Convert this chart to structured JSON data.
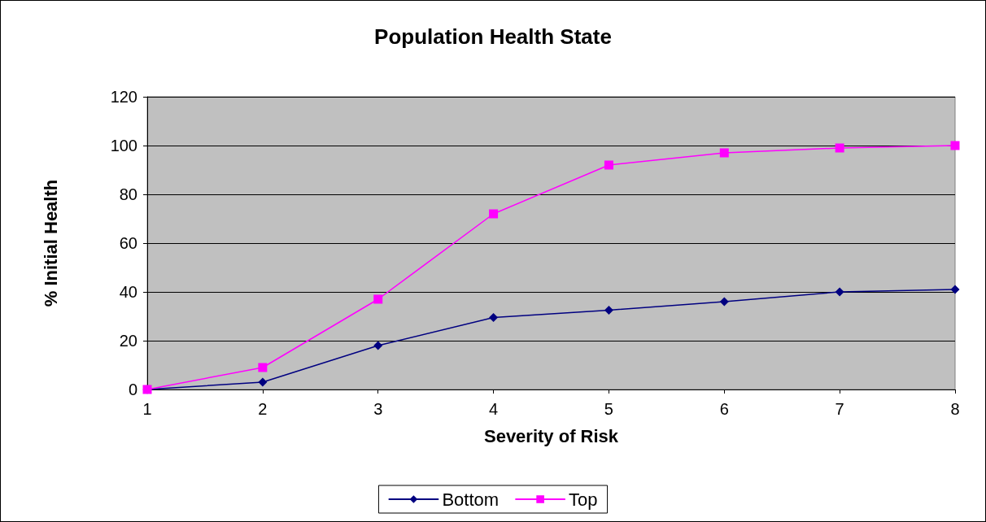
{
  "chart_data": {
    "type": "line",
    "title": "Population Health State",
    "xlabel": "Severity of Risk",
    "ylabel": "% Initial Health",
    "x": [
      1,
      2,
      3,
      4,
      5,
      6,
      7,
      8
    ],
    "series": [
      {
        "name": "Bottom",
        "color": "#000080",
        "marker": "diamond",
        "values": [
          0,
          3,
          18,
          29.5,
          32.5,
          36,
          40,
          41
        ]
      },
      {
        "name": "Top",
        "color": "#ff00ff",
        "marker": "square",
        "values": [
          0,
          9,
          37,
          72,
          92,
          97,
          99,
          100
        ]
      }
    ],
    "xlim": [
      1,
      8
    ],
    "xticks": [
      1,
      2,
      3,
      4,
      5,
      6,
      7,
      8
    ],
    "ylim": [
      0,
      120
    ],
    "yticks": [
      0,
      20,
      40,
      60,
      80,
      100,
      120
    ],
    "grid": "y",
    "legend": "bottom",
    "line_style": "solid"
  }
}
